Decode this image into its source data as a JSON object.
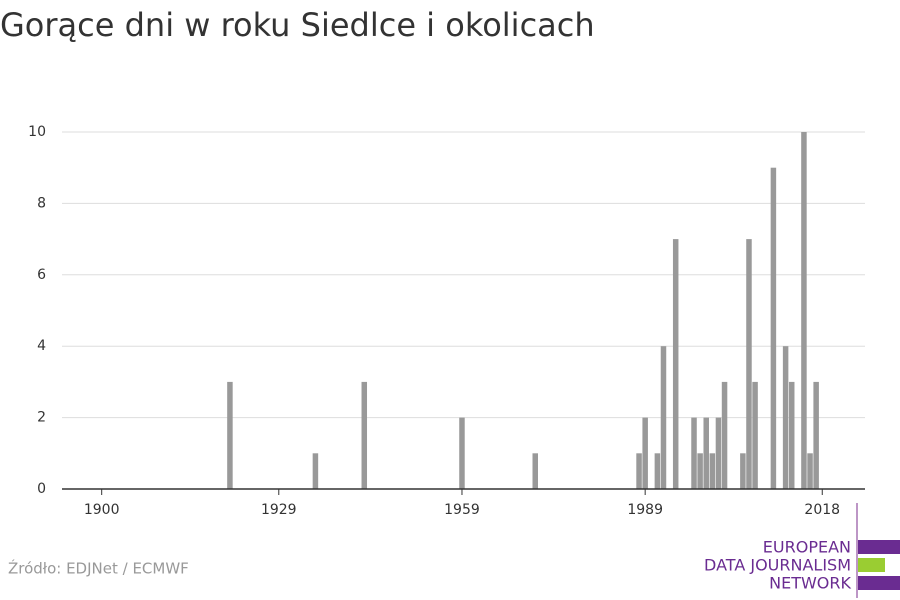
{
  "chart_data": {
    "type": "bar",
    "title": "Gorące dni w roku Siedlce i okolicach",
    "source": "Źródło: EDJNet / ECMWF",
    "x": [
      1921,
      1935,
      1943,
      1959,
      1971,
      1988,
      1989,
      1991,
      1992,
      1994,
      1997,
      1998,
      1999,
      2000,
      2001,
      2002,
      2005,
      2006,
      2007,
      2010,
      2012,
      2013,
      2015,
      2016,
      2017
    ],
    "values": [
      3,
      1,
      3,
      2,
      1,
      1,
      2,
      1,
      4,
      7,
      2,
      1,
      2,
      1,
      2,
      3,
      1,
      7,
      3,
      9,
      4,
      3,
      10,
      1,
      3
    ],
    "color": "#999999",
    "xlim": [
      1893.5,
      2025
    ],
    "xticks": [
      1900,
      1929,
      1959,
      1989,
      2018
    ],
    "ylim": [
      0,
      10
    ],
    "yticks": [
      0,
      2,
      4,
      6,
      8,
      10
    ],
    "grid": true
  },
  "logo": {
    "lines": [
      "EUROPEAN",
      "DATA JOURNALISM",
      "NETWORK"
    ]
  }
}
